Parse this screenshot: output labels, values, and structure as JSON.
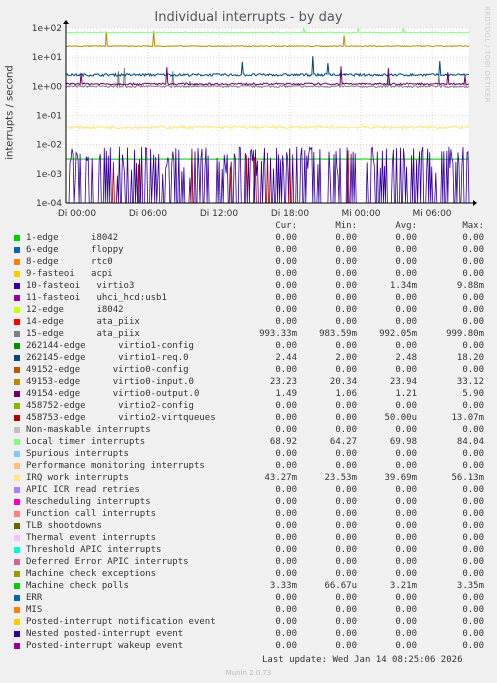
{
  "title": "Individual interrupts - by day",
  "side_label": "RRDTOOL / TOBI OETIKER",
  "footer": {
    "last_update": "Last update: Wed Jan 14 08:25:06 2026",
    "munin": "Munin 2.0.73"
  },
  "legend_header": {
    "cur": "Cur:",
    "min": "Min:",
    "avg": "Avg:",
    "max": "Max:"
  },
  "chart_data": {
    "type": "line",
    "title": "Individual interrupts - by day",
    "ylabel": "interrupts / second",
    "yscale": "log",
    "ylim": [
      0.0001,
      100
    ],
    "yticks": [
      "1e+02",
      "1e+01",
      "1e+00",
      "1e-01",
      "1e-02",
      "1e-03",
      "1e-04"
    ],
    "xticks": [
      "Di 00:00",
      "Di 06:00",
      "Di 12:00",
      "Di 18:00",
      "Mi 00:00",
      "Mi 06:00"
    ],
    "grid": true,
    "series": [
      {
        "name": "1-edge      i8042",
        "color": "#00cc00",
        "cur": "0.00",
        "min": "0.00",
        "avg": "0.00",
        "max": "0.00"
      },
      {
        "name": "6-edge      floppy",
        "color": "#0066b3",
        "cur": "0.00",
        "min": "0.00",
        "avg": "0.00",
        "max": "0.00"
      },
      {
        "name": "8-edge      rtc0",
        "color": "#ff8000",
        "cur": "0.00",
        "min": "0.00",
        "avg": "0.00",
        "max": "0.00"
      },
      {
        "name": "9-fasteoi   acpi",
        "color": "#ffcc00",
        "cur": "0.00",
        "min": "0.00",
        "avg": "0.00",
        "max": "0.00"
      },
      {
        "name": "10-fasteoi   virtio3",
        "color": "#330099",
        "cur": "0.00",
        "min": "0.00",
        "avg": "1.34m",
        "max": "9.88m"
      },
      {
        "name": "11-fasteoi   uhci_hcd:usb1",
        "color": "#990099",
        "cur": "0.00",
        "min": "0.00",
        "avg": "0.00",
        "max": "0.00"
      },
      {
        "name": "12-edge      i8042",
        "color": "#ccff00",
        "cur": "0.00",
        "min": "0.00",
        "avg": "0.00",
        "max": "0.00"
      },
      {
        "name": "14-edge      ata_piix",
        "color": "#ff0000",
        "cur": "0.00",
        "min": "0.00",
        "avg": "0.00",
        "max": "0.00"
      },
      {
        "name": "15-edge      ata_piix",
        "color": "#808080",
        "cur": "993.33m",
        "min": "983.59m",
        "avg": "992.05m",
        "max": "999.80m"
      },
      {
        "name": "262144-edge      virtio1-config",
        "color": "#008f00",
        "cur": "0.00",
        "min": "0.00",
        "avg": "0.00",
        "max": "0.00"
      },
      {
        "name": "262145-edge      virtio1-req.0",
        "color": "#00487d",
        "cur": "2.44",
        "min": "2.00",
        "avg": "2.48",
        "max": "18.20"
      },
      {
        "name": "49152-edge      virtio0-config",
        "color": "#b35a00",
        "cur": "0.00",
        "min": "0.00",
        "avg": "0.00",
        "max": "0.00"
      },
      {
        "name": "49153-edge      virtio0-input.0",
        "color": "#b38f00",
        "cur": "23.23",
        "min": "20.34",
        "avg": "23.94",
        "max": "33.12"
      },
      {
        "name": "49154-edge      virtio0-output.0",
        "color": "#6b006b",
        "cur": "1.49",
        "min": "1.06",
        "avg": "1.21",
        "max": "5.90"
      },
      {
        "name": "458752-edge      virtio2-config",
        "color": "#8fb300",
        "cur": "0.00",
        "min": "0.00",
        "avg": "0.00",
        "max": "0.00"
      },
      {
        "name": "458753-edge      virtio2-virtqueues",
        "color": "#b30000",
        "cur": "0.00",
        "min": "0.00",
        "avg": "50.00u",
        "max": "13.07m"
      },
      {
        "name": "Non-maskable interrupts",
        "color": "#bebebe",
        "cur": "0.00",
        "min": "0.00",
        "avg": "0.00",
        "max": "0.00"
      },
      {
        "name": "Local timer interrupts",
        "color": "#80ff80",
        "cur": "68.92",
        "min": "64.27",
        "avg": "69.98",
        "max": "84.04"
      },
      {
        "name": "Spurious interrupts",
        "color": "#80c9ff",
        "cur": "0.00",
        "min": "0.00",
        "avg": "0.00",
        "max": "0.00"
      },
      {
        "name": "Performance monitoring interrupts",
        "color": "#ffc080",
        "cur": "0.00",
        "min": "0.00",
        "avg": "0.00",
        "max": "0.00"
      },
      {
        "name": "IRQ work interrupts",
        "color": "#ffe680",
        "cur": "43.27m",
        "min": "23.53m",
        "avg": "39.69m",
        "max": "56.13m"
      },
      {
        "name": "APIC ICR read retries",
        "color": "#aa80ff",
        "cur": "0.00",
        "min": "0.00",
        "avg": "0.00",
        "max": "0.00"
      },
      {
        "name": "Rescheduling interrupts",
        "color": "#ee00cc",
        "cur": "0.00",
        "min": "0.00",
        "avg": "0.00",
        "max": "0.00"
      },
      {
        "name": "Function call interrupts",
        "color": "#ff8080",
        "cur": "0.00",
        "min": "0.00",
        "avg": "0.00",
        "max": "0.00"
      },
      {
        "name": "TLB shootdowns",
        "color": "#666600",
        "cur": "0.00",
        "min": "0.00",
        "avg": "0.00",
        "max": "0.00"
      },
      {
        "name": "Thermal event interrupts",
        "color": "#ffbfff",
        "cur": "0.00",
        "min": "0.00",
        "avg": "0.00",
        "max": "0.00"
      },
      {
        "name": "Threshold APIC interrupts",
        "color": "#00ffcc",
        "cur": "0.00",
        "min": "0.00",
        "avg": "0.00",
        "max": "0.00"
      },
      {
        "name": "Deferred Error APIC interrupts",
        "color": "#cc6699",
        "cur": "0.00",
        "min": "0.00",
        "avg": "0.00",
        "max": "0.00"
      },
      {
        "name": "Machine check exceptions",
        "color": "#999900",
        "cur": "0.00",
        "min": "0.00",
        "avg": "0.00",
        "max": "0.00"
      },
      {
        "name": "Machine check polls",
        "color": "#00cc00",
        "cur": "3.33m",
        "min": "66.67u",
        "avg": "3.21m",
        "max": "3.35m"
      },
      {
        "name": "ERR",
        "color": "#0066b3",
        "cur": "0.00",
        "min": "0.00",
        "avg": "0.00",
        "max": "0.00"
      },
      {
        "name": "MIS",
        "color": "#ff8000",
        "cur": "0.00",
        "min": "0.00",
        "avg": "0.00",
        "max": "0.00"
      },
      {
        "name": "Posted-interrupt notification event",
        "color": "#ffcc00",
        "cur": "0.00",
        "min": "0.00",
        "avg": "0.00",
        "max": "0.00"
      },
      {
        "name": "Nested posted-interrupt event",
        "color": "#330099",
        "cur": "0.00",
        "min": "0.00",
        "avg": "0.00",
        "max": "0.00"
      },
      {
        "name": "Posted-interrupt wakeup event",
        "color": "#990099",
        "cur": "0.00",
        "min": "0.00",
        "avg": "0.00",
        "max": "0.00"
      }
    ]
  }
}
